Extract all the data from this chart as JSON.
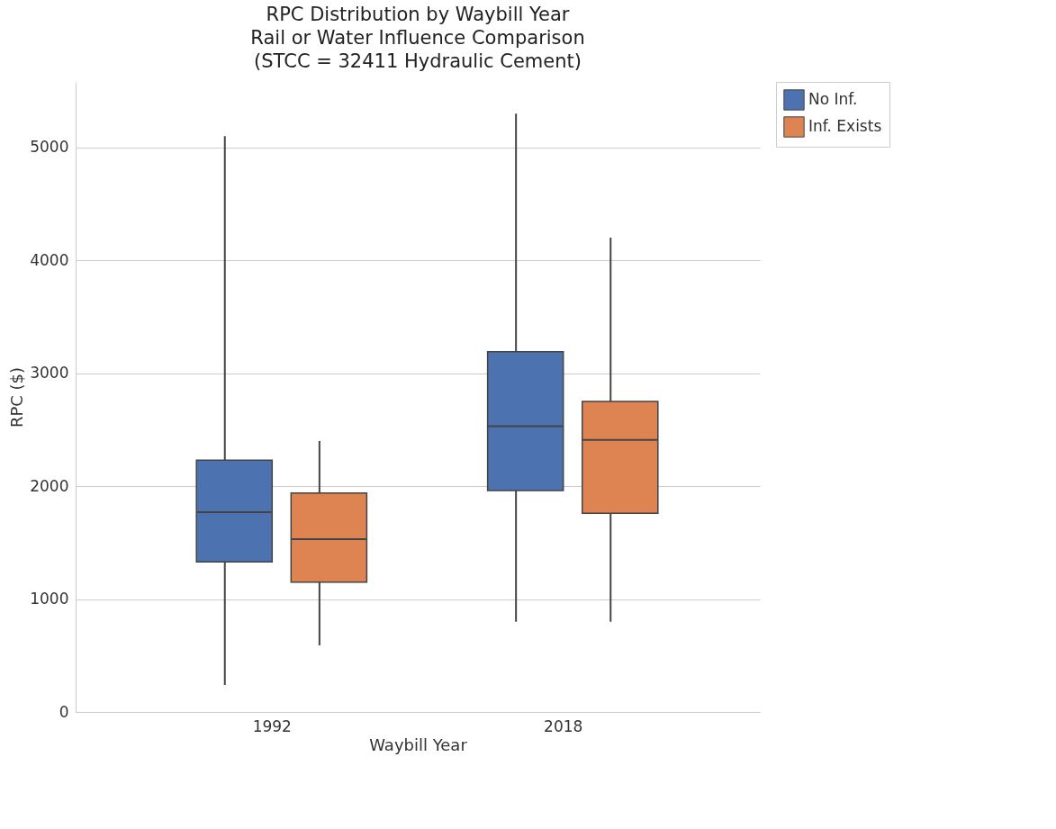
{
  "chart_data": {
    "type": "box",
    "title": "RPC Distribution by Waybill Year\nRail or Water Influence Comparison\n(STCC = 32411 Hydraulic Cement)",
    "xlabel": "Waybill Year",
    "ylabel": "RPC ($)",
    "categories": [
      "1992",
      "2018"
    ],
    "series": [
      {
        "name": "No Inf.",
        "color": "#4c72b0",
        "boxes": [
          {
            "low": 240,
            "q1": 1330,
            "median": 1770,
            "q3": 2230,
            "high": 5100
          },
          {
            "low": 800,
            "q1": 1960,
            "median": 2530,
            "q3": 3190,
            "high": 5300
          }
        ]
      },
      {
        "name": "Inf. Exists",
        "color": "#dd8452",
        "boxes": [
          {
            "low": 590,
            "q1": 1150,
            "median": 1530,
            "q3": 1940,
            "high": 2400
          },
          {
            "low": 800,
            "q1": 1760,
            "median": 2410,
            "q3": 2750,
            "high": 4200
          }
        ]
      }
    ],
    "ylim": [
      0,
      5580
    ],
    "yticks": [
      0,
      1000,
      2000,
      3000,
      4000,
      5000
    ],
    "grid": "y",
    "legend": "right"
  }
}
